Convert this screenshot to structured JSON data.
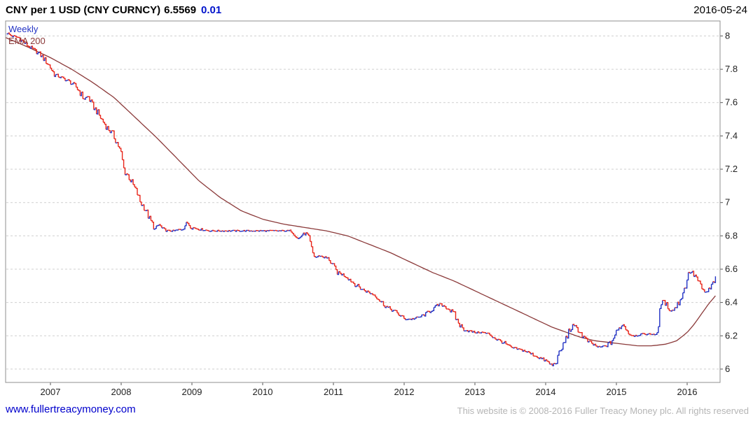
{
  "header": {
    "instrument": "CNY per 1 USD (CNY CURNCY)",
    "last": "6.5569",
    "change": "0.01",
    "date": "2016-05-24"
  },
  "legend": {
    "timeframe": "Weekly",
    "overlay": "EMA 200"
  },
  "footer": {
    "site": "www.fullertreacymoney.com",
    "copyright": "This website is © 2008-2016 Fuller Treacy Money plc. All rights reserved"
  },
  "colors": {
    "price_up": "#2333c4",
    "price_down": "#e8251a",
    "ema": "#8b3a3a",
    "change_text": "#0013cc",
    "link": "#0000cc",
    "copyright_text": "#b5b5b5",
    "grid": "#cfcfcf",
    "axis_text": "#222222"
  },
  "chart_data": {
    "type": "line",
    "style": "weekly price bars (red = down week, blue = up week) with EMA 200 overlay",
    "title": "CNY per 1 USD (CNY CURNCY)",
    "xlabel": "",
    "ylabel": "",
    "grid": "horizontal-dashed",
    "legend_position": "top-left",
    "xlim": [
      2006.366,
      2016.465
    ],
    "ylim": [
      5.92,
      8.09
    ],
    "x_ticks": [
      2007,
      2008,
      2009,
      2010,
      2011,
      2012,
      2013,
      2014,
      2015,
      2016
    ],
    "x_tick_labels": [
      "2007",
      "2008",
      "2009",
      "2010",
      "2011",
      "2012",
      "2013",
      "2014",
      "2015",
      "2016"
    ],
    "y_ticks": [
      8,
      7.8,
      7.6,
      7.4,
      7.2,
      7,
      6.8,
      6.6,
      6.4,
      6.2,
      6
    ],
    "y_tick_labels": [
      "8",
      "7.8",
      "7.6",
      "7.4",
      "7.2",
      "7",
      "6.8",
      "6.6",
      "6.4",
      "6.2",
      "6"
    ],
    "series": [
      {
        "name": "CNY per 1 USD weekly",
        "color_up": "#2333c4",
        "color_down": "#e8251a",
        "points": [
          [
            2006.37,
            8.02
          ],
          [
            2006.45,
            8.0
          ],
          [
            2006.55,
            7.99
          ],
          [
            2006.65,
            7.95
          ],
          [
            2006.75,
            7.92
          ],
          [
            2006.85,
            7.89
          ],
          [
            2006.95,
            7.84
          ],
          [
            2007.0,
            7.81
          ],
          [
            2007.05,
            7.77
          ],
          [
            2007.15,
            7.75
          ],
          [
            2007.25,
            7.73
          ],
          [
            2007.35,
            7.7
          ],
          [
            2007.42,
            7.66
          ],
          [
            2007.47,
            7.62
          ],
          [
            2007.53,
            7.64
          ],
          [
            2007.58,
            7.59
          ],
          [
            2007.65,
            7.55
          ],
          [
            2007.72,
            7.5
          ],
          [
            2007.8,
            7.45
          ],
          [
            2007.88,
            7.41
          ],
          [
            2007.95,
            7.35
          ],
          [
            2008.0,
            7.29
          ],
          [
            2008.04,
            7.19
          ],
          [
            2008.1,
            7.16
          ],
          [
            2008.16,
            7.11
          ],
          [
            2008.22,
            7.06
          ],
          [
            2008.27,
            7.0
          ],
          [
            2008.33,
            6.97
          ],
          [
            2008.4,
            6.9
          ],
          [
            2008.48,
            6.84
          ],
          [
            2008.53,
            6.87
          ],
          [
            2008.58,
            6.84
          ],
          [
            2008.65,
            6.83
          ],
          [
            2008.75,
            6.83
          ],
          [
            2008.85,
            6.84
          ],
          [
            2008.93,
            6.88
          ],
          [
            2009.0,
            6.85
          ],
          [
            2009.1,
            6.84
          ],
          [
            2009.25,
            6.83
          ],
          [
            2009.4,
            6.83
          ],
          [
            2009.6,
            6.83
          ],
          [
            2009.8,
            6.83
          ],
          [
            2010.0,
            6.83
          ],
          [
            2010.2,
            6.83
          ],
          [
            2010.4,
            6.83
          ],
          [
            2010.46,
            6.81
          ],
          [
            2010.5,
            6.78
          ],
          [
            2010.56,
            6.81
          ],
          [
            2010.62,
            6.81
          ],
          [
            2010.66,
            6.77
          ],
          [
            2010.7,
            6.7
          ],
          [
            2010.74,
            6.67
          ],
          [
            2010.8,
            6.68
          ],
          [
            2010.88,
            6.67
          ],
          [
            2010.94,
            6.66
          ],
          [
            2011.0,
            6.61
          ],
          [
            2011.05,
            6.58
          ],
          [
            2011.12,
            6.57
          ],
          [
            2011.2,
            6.55
          ],
          [
            2011.3,
            6.51
          ],
          [
            2011.4,
            6.48
          ],
          [
            2011.5,
            6.46
          ],
          [
            2011.6,
            6.44
          ],
          [
            2011.68,
            6.4
          ],
          [
            2011.76,
            6.37
          ],
          [
            2011.85,
            6.35
          ],
          [
            2011.95,
            6.32
          ],
          [
            2012.0,
            6.3
          ],
          [
            2012.1,
            6.3
          ],
          [
            2012.2,
            6.31
          ],
          [
            2012.3,
            6.33
          ],
          [
            2012.4,
            6.36
          ],
          [
            2012.5,
            6.39
          ],
          [
            2012.56,
            6.38
          ],
          [
            2012.63,
            6.36
          ],
          [
            2012.7,
            6.33
          ],
          [
            2012.76,
            6.28
          ],
          [
            2012.83,
            6.24
          ],
          [
            2012.9,
            6.23
          ],
          [
            2013.0,
            6.22
          ],
          [
            2013.1,
            6.22
          ],
          [
            2013.2,
            6.21
          ],
          [
            2013.3,
            6.18
          ],
          [
            2013.4,
            6.16
          ],
          [
            2013.5,
            6.13
          ],
          [
            2013.6,
            6.12
          ],
          [
            2013.7,
            6.11
          ],
          [
            2013.8,
            6.09
          ],
          [
            2013.9,
            6.07
          ],
          [
            2014.0,
            6.05
          ],
          [
            2014.06,
            6.03
          ],
          [
            2014.1,
            6.02
          ],
          [
            2014.16,
            6.06
          ],
          [
            2014.22,
            6.12
          ],
          [
            2014.28,
            6.18
          ],
          [
            2014.33,
            6.23
          ],
          [
            2014.38,
            6.26
          ],
          [
            2014.44,
            6.25
          ],
          [
            2014.5,
            6.21
          ],
          [
            2014.58,
            6.17
          ],
          [
            2014.66,
            6.15
          ],
          [
            2014.75,
            6.13
          ],
          [
            2014.85,
            6.14
          ],
          [
            2014.92,
            6.16
          ],
          [
            2014.97,
            6.2
          ],
          [
            2015.03,
            6.24
          ],
          [
            2015.08,
            6.27
          ],
          [
            2015.13,
            6.25
          ],
          [
            2015.18,
            6.21
          ],
          [
            2015.25,
            6.2
          ],
          [
            2015.35,
            6.21
          ],
          [
            2015.45,
            6.21
          ],
          [
            2015.55,
            6.21
          ],
          [
            2015.59,
            6.22
          ],
          [
            2015.62,
            6.41
          ],
          [
            2015.68,
            6.4
          ],
          [
            2015.73,
            6.37
          ],
          [
            2015.78,
            6.35
          ],
          [
            2015.83,
            6.37
          ],
          [
            2015.88,
            6.4
          ],
          [
            2015.93,
            6.45
          ],
          [
            2015.97,
            6.49
          ],
          [
            2016.0,
            6.55
          ],
          [
            2016.04,
            6.59
          ],
          [
            2016.08,
            6.57
          ],
          [
            2016.13,
            6.55
          ],
          [
            2016.17,
            6.51
          ],
          [
            2016.22,
            6.47
          ],
          [
            2016.27,
            6.46
          ],
          [
            2016.32,
            6.48
          ],
          [
            2016.37,
            6.52
          ],
          [
            2016.4,
            6.5569
          ]
        ]
      },
      {
        "name": "EMA 200",
        "color": "#8b3a3a",
        "points": [
          [
            2006.37,
            7.99
          ],
          [
            2006.7,
            7.93
          ],
          [
            2007.0,
            7.87
          ],
          [
            2007.3,
            7.8
          ],
          [
            2007.6,
            7.72
          ],
          [
            2007.9,
            7.63
          ],
          [
            2008.2,
            7.51
          ],
          [
            2008.5,
            7.39
          ],
          [
            2008.8,
            7.26
          ],
          [
            2009.1,
            7.13
          ],
          [
            2009.4,
            7.03
          ],
          [
            2009.7,
            6.95
          ],
          [
            2010.0,
            6.9
          ],
          [
            2010.3,
            6.87
          ],
          [
            2010.6,
            6.85
          ],
          [
            2010.9,
            6.83
          ],
          [
            2011.2,
            6.8
          ],
          [
            2011.5,
            6.75
          ],
          [
            2011.8,
            6.7
          ],
          [
            2012.1,
            6.64
          ],
          [
            2012.4,
            6.58
          ],
          [
            2012.7,
            6.53
          ],
          [
            2013.0,
            6.47
          ],
          [
            2013.3,
            6.41
          ],
          [
            2013.6,
            6.35
          ],
          [
            2013.9,
            6.29
          ],
          [
            2014.1,
            6.25
          ],
          [
            2014.3,
            6.22
          ],
          [
            2014.5,
            6.19
          ],
          [
            2014.7,
            6.17
          ],
          [
            2014.9,
            6.16
          ],
          [
            2015.1,
            6.15
          ],
          [
            2015.3,
            6.14
          ],
          [
            2015.5,
            6.14
          ],
          [
            2015.7,
            6.15
          ],
          [
            2015.85,
            6.17
          ],
          [
            2016.0,
            6.22
          ],
          [
            2016.1,
            6.27
          ],
          [
            2016.2,
            6.33
          ],
          [
            2016.3,
            6.39
          ],
          [
            2016.4,
            6.44
          ]
        ]
      }
    ]
  }
}
